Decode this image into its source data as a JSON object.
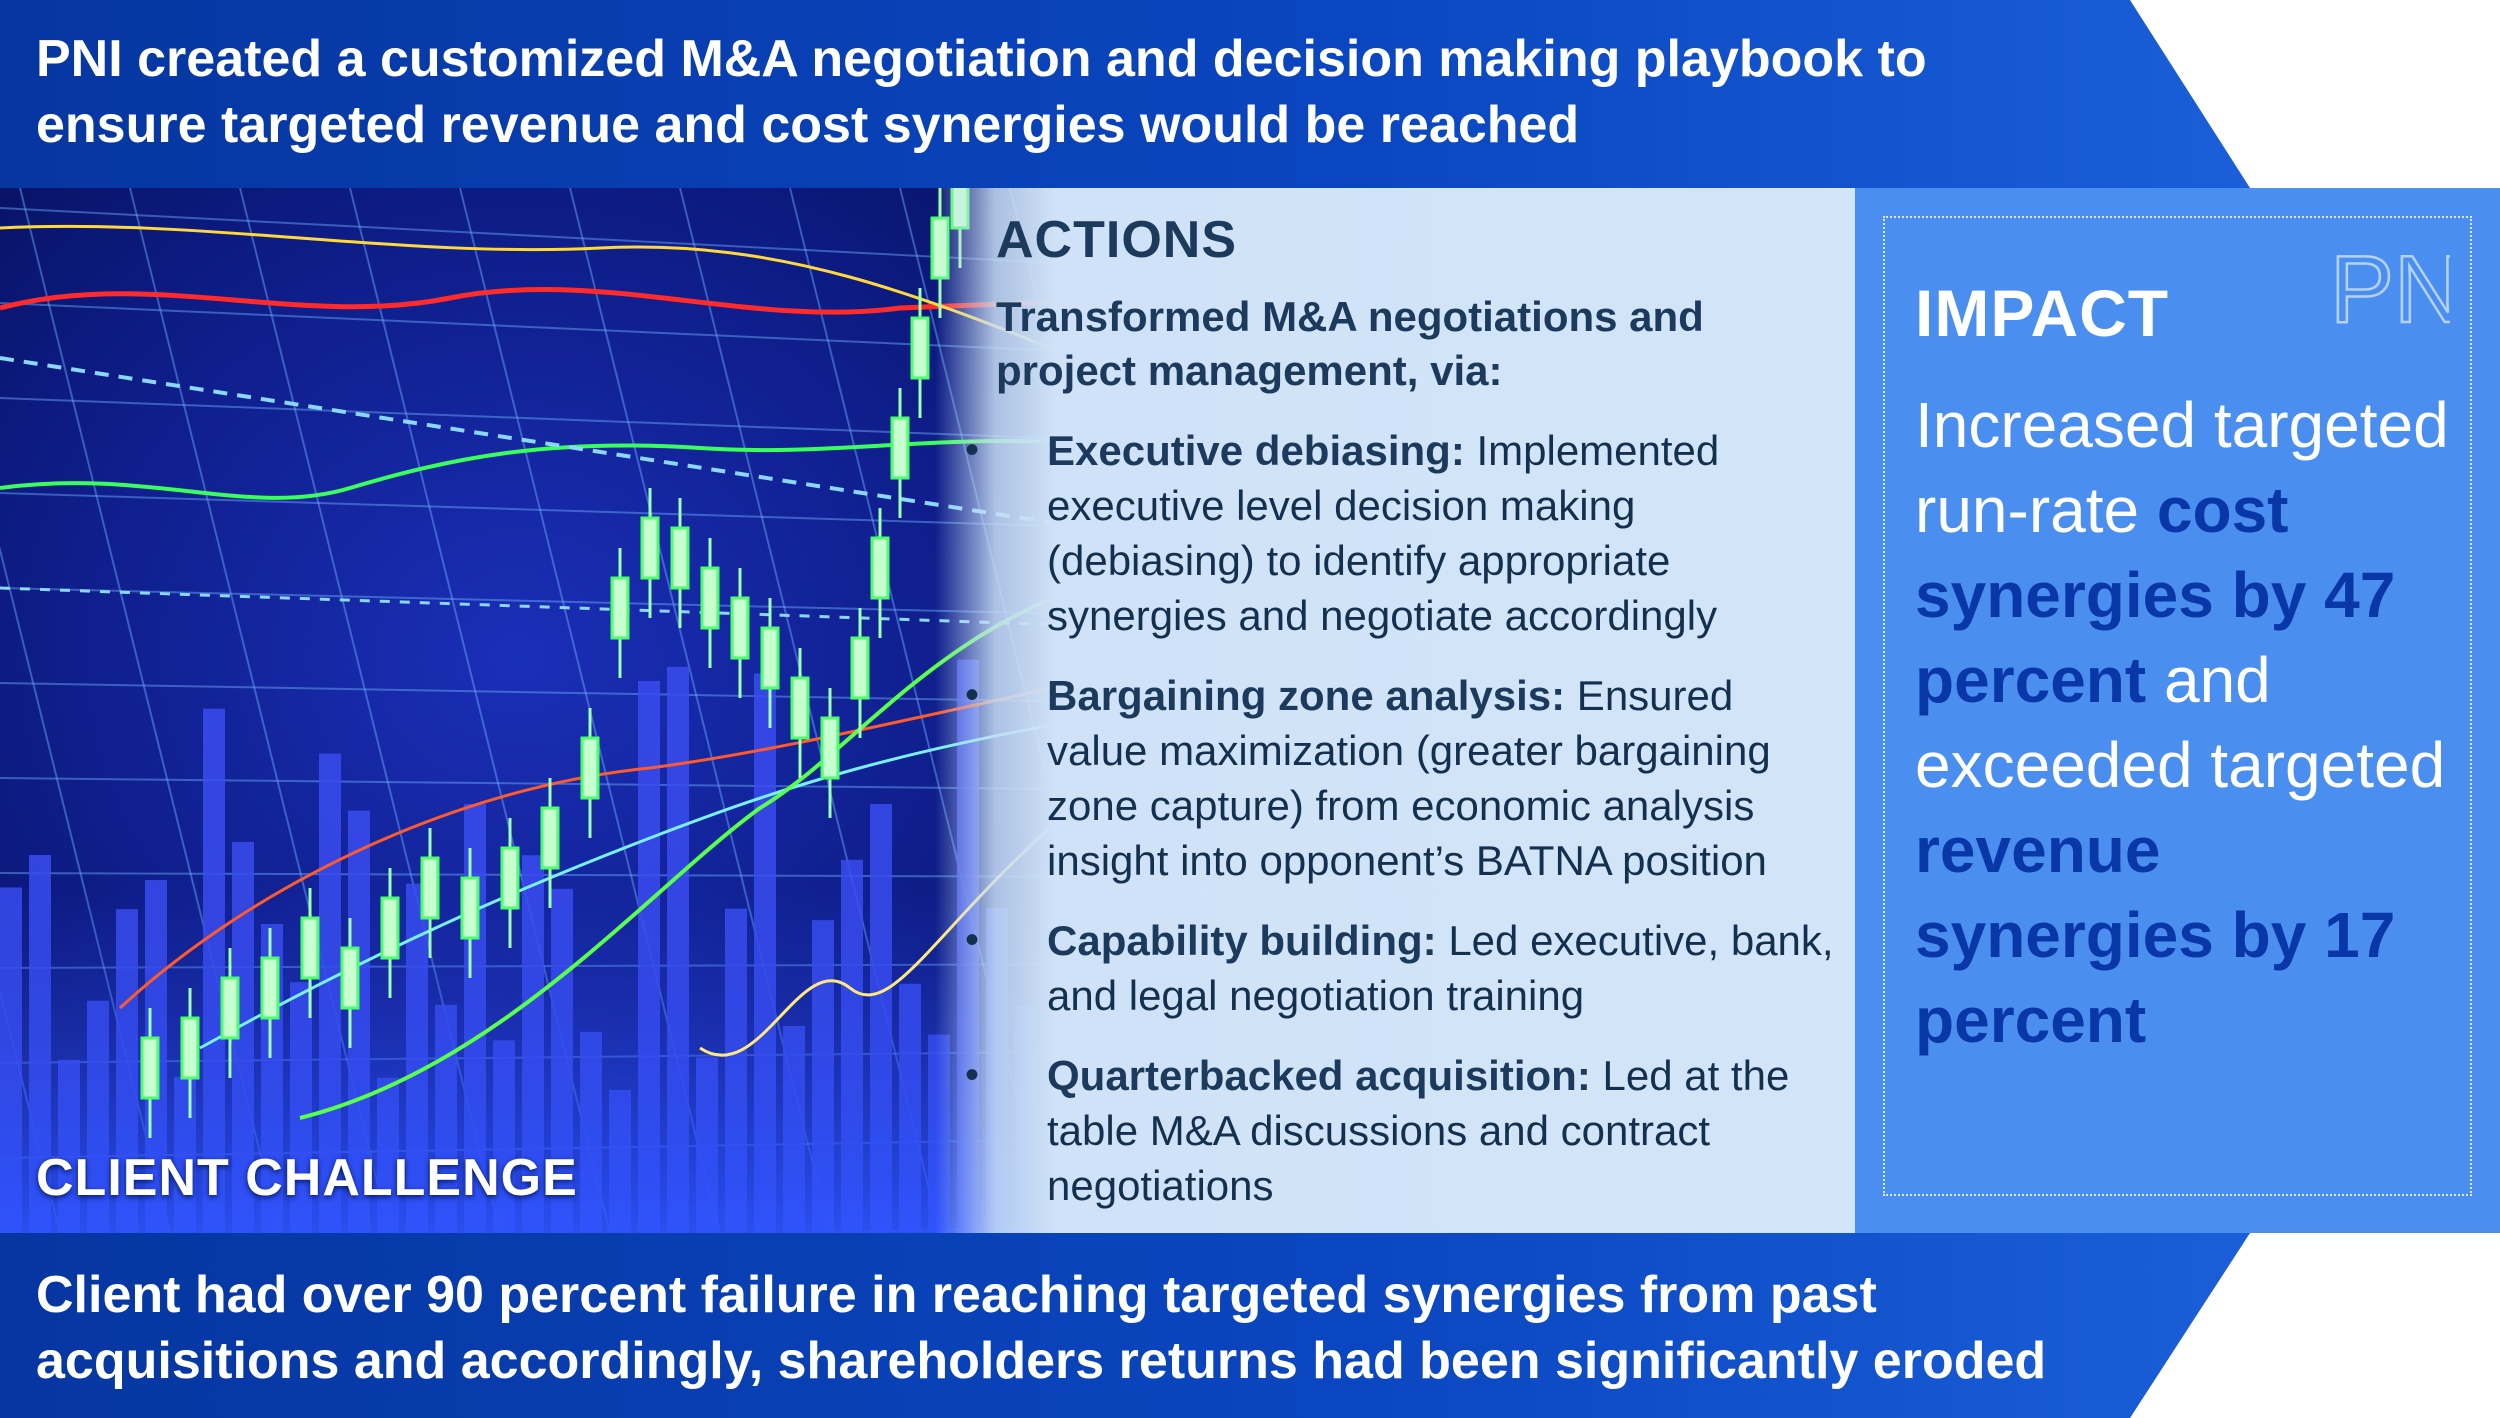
{
  "headline": {
    "line1": "PNI created a customized M&A negotiation and decision making playbook to",
    "line2": "ensure targeted revenue and cost synergies would be reached"
  },
  "client_challenge": {
    "title": "CLIENT CHALLENGE",
    "line1": "Client had over 90 percent failure in reaching targeted synergies from past",
    "line2": "acquisitions and accordingly, shareholders returns had been significantly eroded"
  },
  "actions": {
    "title": "ACTIONS",
    "intro": "Transformed M&A negotiations and project management, via:",
    "bullet_glyph": "•",
    "items": [
      {
        "lead": "Executive debiasing:",
        "text": " Implemented executive level decision making (debiasing) to identify appropriate synergies and negotiate accordingly"
      },
      {
        "lead": "Bargaining zone analysis:",
        "text": " Ensured value maximization (greater bargaining zone capture) from economic analysis insight into opponent’s BATNA position"
      },
      {
        "lead": "Capability building:",
        "text": " Led executive, bank, and legal negotiation training"
      },
      {
        "lead": "Quarterbacked acquisition:",
        "text": " Led at the table M&A discussions and contract negotiations"
      }
    ]
  },
  "impact": {
    "title": "IMPACT",
    "p1": "Increased targeted run-rate ",
    "s1": "cost synergies by 47 percent",
    "p2": " and exceeded targeted ",
    "s2": "revenue synergies by 17 percent"
  },
  "logo": {
    "letters": "PNi"
  },
  "colors": {
    "banner": "#0a3fb0",
    "impact_bg": "#4a8ff0",
    "impact_accent": "#0a37a8",
    "actions_text": "#1b3a5c"
  }
}
